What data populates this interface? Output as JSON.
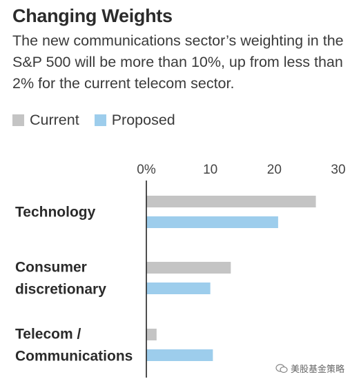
{
  "title": "Changing Weights",
  "subtitle": "The new communications sector’s weighting in the S&P 500 will be more than 10%, up from less than 2% for the current telecom sector.",
  "legend": {
    "current_label": "Current",
    "proposed_label": "Proposed"
  },
  "colors": {
    "current": "#c4c4c4",
    "proposed": "#9dcdec",
    "axis": "#222222"
  },
  "watermark": "美股基金策略",
  "chart_data": {
    "type": "bar",
    "orientation": "horizontal",
    "title": "Changing Weights",
    "categories": [
      "Technology",
      "Consumer discretionary",
      "Telecom / Communications"
    ],
    "category_lines": [
      [
        "Technology"
      ],
      [
        "Consumer",
        "discretionary"
      ],
      [
        "Telecom /",
        "Communications"
      ]
    ],
    "series": [
      {
        "name": "Current",
        "values": [
          26.5,
          13.2,
          1.6
        ]
      },
      {
        "name": "Proposed",
        "values": [
          20.6,
          10.0,
          10.4
        ]
      }
    ],
    "xlim": [
      0,
      30
    ],
    "xticks": [
      0,
      10,
      20,
      30
    ],
    "xtick_labels": [
      "0%",
      "10",
      "20",
      "30"
    ],
    "grid": false,
    "legend_position": "top-left"
  }
}
